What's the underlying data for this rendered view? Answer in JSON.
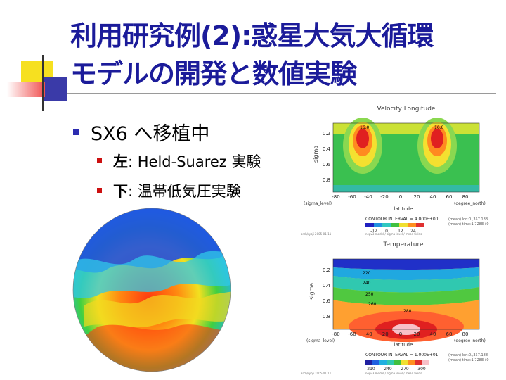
{
  "slide": {
    "title_line1": "利用研究例(2):惑星大気大循環",
    "title_line2": "モデルの開発と数値実験",
    "bullet1": "SX6 へ移植中",
    "sub_bullets": [
      {
        "key": "左",
        "text": ": Held-Suarez 実験"
      },
      {
        "key": "下",
        "text": ": 温帯低気圧実験"
      }
    ]
  },
  "plots": {
    "top": {
      "title": "Velocity Longitude",
      "ylabel": "sigma",
      "xlabel": "latitude",
      "left_label": "(sigma_level)",
      "right_label": "(degree_north)",
      "yticks": [
        "0.2",
        "0.4",
        "0.6",
        "0.8"
      ],
      "xticks": [
        "-80",
        "-60",
        "-40",
        "-20",
        "0",
        "20",
        "40",
        "60",
        "80"
      ],
      "contour_labels": [
        "16.0",
        "16.0"
      ],
      "contour_interval": "CONTOUR INTERVAL = 4.000E+00",
      "colorbar_ticks": [
        "-12",
        "0",
        "12",
        "24"
      ],
      "mean1": "(mean) lon:0.,357.188",
      "mean2": "(mean) time:1.728E+0",
      "footer_left": "arch/ryoji  2005-01-11",
      "footer_mid": "nepv3 model / sigma level / mean fields"
    },
    "bottom": {
      "title": "Temperature",
      "ylabel": "sigma",
      "xlabel": "latitude",
      "left_label": "(sigma_level)",
      "right_label": "(degree_north)",
      "yticks": [
        "0.2",
        "0.4",
        "0.6",
        "0.8"
      ],
      "xticks": [
        "-80",
        "-60",
        "-40",
        "-20",
        "0",
        "20",
        "40",
        "60",
        "80"
      ],
      "contour_labels": [
        "220",
        "240",
        "250",
        "260",
        "280"
      ],
      "contour_interval": "CONTOUR INTERVAL = 1.000E+01",
      "colorbar_ticks": [
        "210",
        "240",
        "270",
        "300"
      ],
      "mean1": "(mean) lon:0.,357.188",
      "mean2": "(mean) time:1.728E+0",
      "footer_left": "arch/ryoji  2005-01-11",
      "footer_mid": "nepv3 model / sigma level / mean fields"
    }
  },
  "colors": {
    "title": "#1b1b9a",
    "bullet_primary": "#2c2cb0",
    "bullet_secondary": "#cc1010",
    "deco_yellow": "#f6e020",
    "deco_blue": "#3a3aa8",
    "deco_red": "#f05050"
  }
}
